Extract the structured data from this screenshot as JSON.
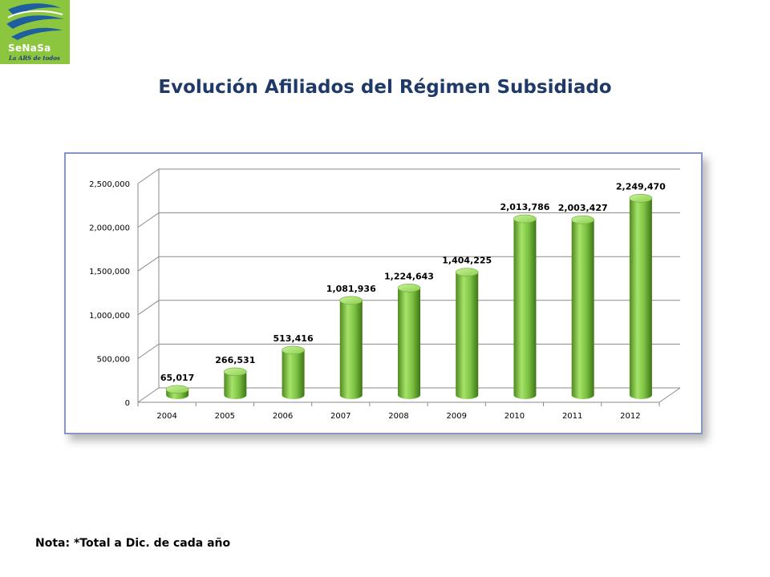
{
  "logo": {
    "name": "SeNaSa",
    "tagline": "La ARS de todos",
    "colors": {
      "background": "#8cc63f",
      "swoosh": "#1f5f9f"
    }
  },
  "header": {
    "title": "Evolución Afiliados del Régimen Subsidiado"
  },
  "chart_data": {
    "type": "bar",
    "categories": [
      "2004",
      "2005",
      "2006",
      "2007",
      "2008",
      "2009",
      "2010",
      "2011",
      "2012"
    ],
    "values": [
      65017,
      266531,
      513416,
      1081936,
      1224643,
      1404225,
      2013786,
      2003427,
      2249470
    ],
    "data_labels": [
      "65,017",
      "266,531",
      "513,416",
      "1,081,936",
      "1,224,643",
      "1,404,225",
      "2,013,786",
      "2,003,427",
      "2,249,470"
    ],
    "yticks": [
      0,
      500000,
      1000000,
      1500000,
      2000000,
      2500000
    ],
    "ytick_labels": [
      "0",
      "500,000",
      "1,000,000",
      "1,500,000",
      "2,000,000",
      "2,500,000"
    ],
    "ylim": [
      0,
      2500000
    ],
    "grid": true,
    "legend": "none",
    "style": "3d-cylinder",
    "bar_color": "#7cc243"
  },
  "footer": {
    "note": "Nota: *Total a Dic. de cada año"
  }
}
